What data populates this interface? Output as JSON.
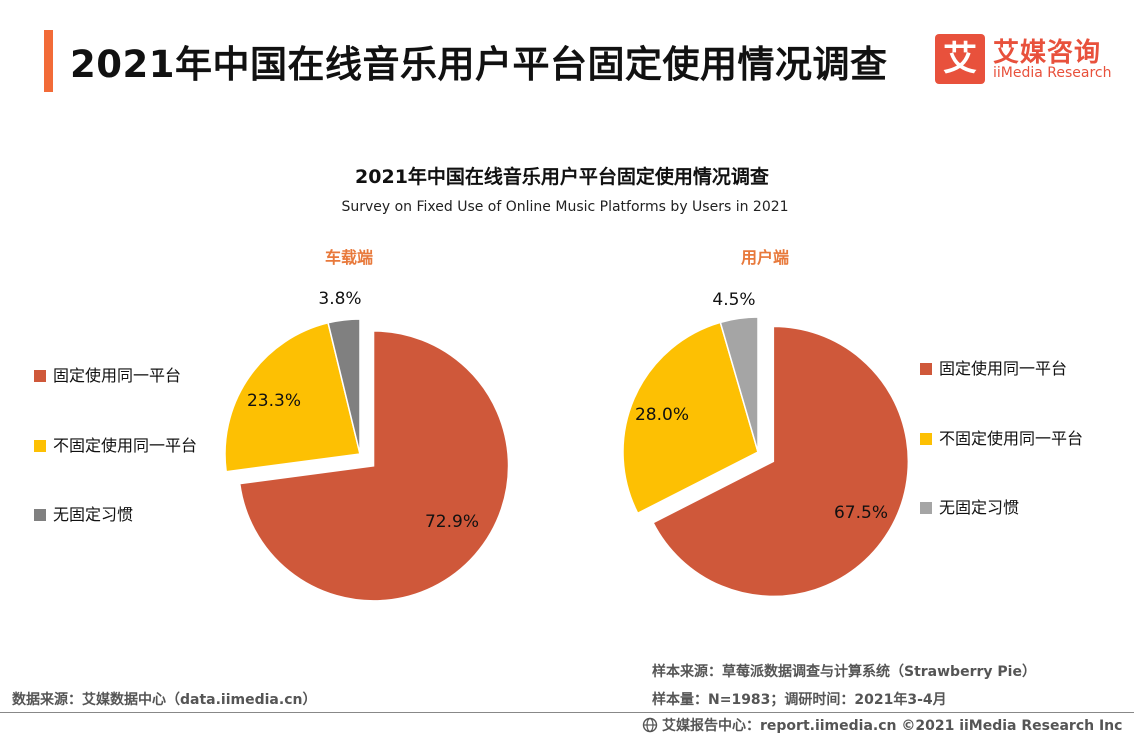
{
  "page": {
    "title": "2021年中国在线音乐用户平台固定使用情况调查"
  },
  "logo": {
    "glyph": "艾",
    "cn": "艾媒咨询",
    "en": "iiMedia Research"
  },
  "chart_data": {
    "type": "pie",
    "title": "2021年中国在线音乐用户平台固定使用情况调查",
    "subtitle": "Survey on Fixed Use of Online Music Platforms by Users in 2021",
    "categories": [
      "固定使用同一平台",
      "不固定使用同一平台",
      "无固定习惯"
    ],
    "colors": [
      "#cf583a",
      "#fdc003",
      "#808080"
    ],
    "charts": [
      {
        "name": "车载端",
        "values": [
          72.9,
          23.3,
          3.8
        ],
        "labels": [
          "72.9%",
          "23.3%",
          "3.8%"
        ],
        "colors": [
          "#cf583a",
          "#fdc003",
          "#808080"
        ],
        "exploded": [
          0
        ]
      },
      {
        "name": "用户端",
        "values": [
          67.5,
          28.0,
          4.5
        ],
        "labels": [
          "67.5%",
          "28.0%",
          "4.5%"
        ],
        "colors": [
          "#cf583a",
          "#fdc003",
          "#a5a5a5"
        ],
        "exploded": [
          0
        ]
      }
    ]
  },
  "legend_left": {
    "items": [
      {
        "label": "固定使用同一平台",
        "color": "#cf583a"
      },
      {
        "label": "不固定使用同一平台",
        "color": "#fdc003"
      },
      {
        "label": "无固定习惯",
        "color": "#808080"
      }
    ]
  },
  "legend_right": {
    "items": [
      {
        "label": "固定使用同一平台",
        "color": "#cf583a"
      },
      {
        "label": "不固定使用同一平台",
        "color": "#fdc003"
      },
      {
        "label": "无固定习惯",
        "color": "#a5a5a5"
      }
    ]
  },
  "footer": {
    "data_source": "数据来源：艾媒数据中心（data.iimedia.cn）",
    "sample_source": "样本来源：草莓派数据调查与计算系统（Strawberry Pie）",
    "sample_size": "样本量：N=1983；调研时间：2021年3-4月",
    "report_center": "艾媒报告中心：report.iimedia.cn ©2021  iiMedia Research  Inc"
  }
}
